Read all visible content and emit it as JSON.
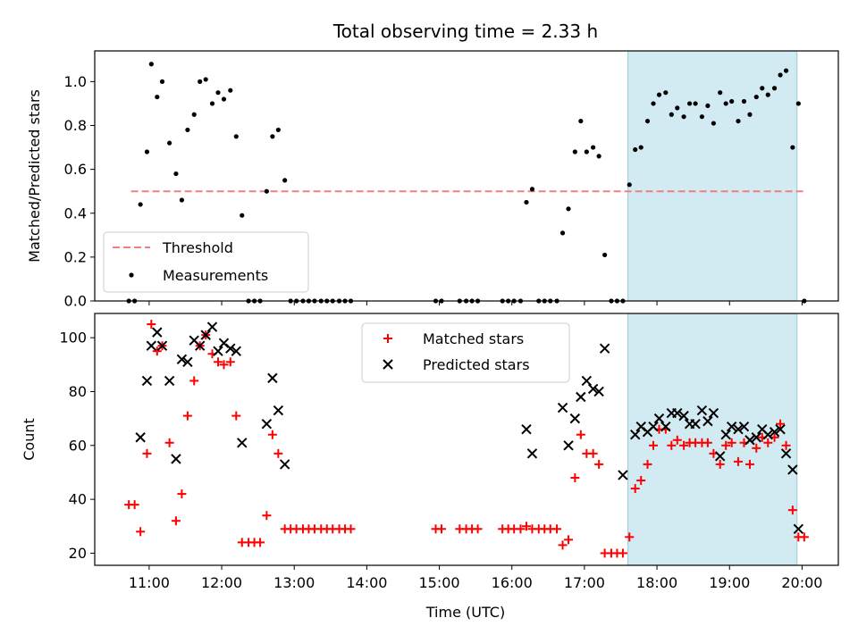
{
  "chart_data": [
    {
      "type": "scatter",
      "title": "Total observing time = 2.33 h",
      "xlabel": "",
      "ylabel": "Matched/Predicted stars",
      "ylim": [
        0,
        1.14
      ],
      "yticks": [
        "0.0",
        "0.2",
        "0.4",
        "0.6",
        "0.8",
        "1.0"
      ],
      "legend_position": "lower-left",
      "threshold": {
        "name": "Threshold",
        "value": 0.5,
        "x_start": 10.75,
        "x_end": 20.05,
        "color": "#f08080"
      },
      "shaded_interval": {
        "x_start": 17.6,
        "x_end": 19.93,
        "color": "#add8e6"
      },
      "series": [
        {
          "name": "Measurements",
          "color": "#000000",
          "marker": "dot",
          "points": [
            [
              10.72,
              0
            ],
            [
              10.8,
              0
            ],
            [
              10.88,
              0.44
            ],
            [
              10.97,
              0.68
            ],
            [
              11.03,
              1.08
            ],
            [
              11.11,
              0.93
            ],
            [
              11.18,
              1.0
            ],
            [
              11.28,
              0.72
            ],
            [
              11.37,
              0.58
            ],
            [
              11.45,
              0.46
            ],
            [
              11.53,
              0.78
            ],
            [
              11.62,
              0.85
            ],
            [
              11.7,
              1.0
            ],
            [
              11.78,
              1.01
            ],
            [
              11.87,
              0.9
            ],
            [
              11.95,
              0.95
            ],
            [
              12.03,
              0.92
            ],
            [
              12.12,
              0.96
            ],
            [
              12.2,
              0.75
            ],
            [
              12.28,
              0.39
            ],
            [
              12.37,
              0
            ],
            [
              12.45,
              0
            ],
            [
              12.53,
              0
            ],
            [
              12.62,
              0.5
            ],
            [
              12.7,
              0.75
            ],
            [
              12.78,
              0.78
            ],
            [
              12.87,
              0.55
            ],
            [
              12.95,
              0
            ],
            [
              13.03,
              0
            ],
            [
              13.12,
              0
            ],
            [
              13.2,
              0
            ],
            [
              13.28,
              0
            ],
            [
              13.37,
              0
            ],
            [
              13.45,
              0
            ],
            [
              13.53,
              0
            ],
            [
              13.62,
              0
            ],
            [
              13.7,
              0
            ],
            [
              13.78,
              0
            ],
            [
              14.95,
              0
            ],
            [
              15.03,
              0
            ],
            [
              15.28,
              0
            ],
            [
              15.37,
              0
            ],
            [
              15.45,
              0
            ],
            [
              15.53,
              0
            ],
            [
              15.87,
              0
            ],
            [
              15.95,
              0
            ],
            [
              16.03,
              0
            ],
            [
              16.12,
              0
            ],
            [
              16.2,
              0.45
            ],
            [
              16.28,
              0.51
            ],
            [
              16.37,
              0
            ],
            [
              16.45,
              0
            ],
            [
              16.53,
              0
            ],
            [
              16.62,
              0
            ],
            [
              16.7,
              0.31
            ],
            [
              16.78,
              0.42
            ],
            [
              16.87,
              0.68
            ],
            [
              16.95,
              0.82
            ],
            [
              17.03,
              0.68
            ],
            [
              17.12,
              0.7
            ],
            [
              17.2,
              0.66
            ],
            [
              17.28,
              0.21
            ],
            [
              17.37,
              0
            ],
            [
              17.45,
              0
            ],
            [
              17.53,
              0
            ],
            [
              17.62,
              0.53
            ],
            [
              17.7,
              0.69
            ],
            [
              17.78,
              0.7
            ],
            [
              17.87,
              0.82
            ],
            [
              17.95,
              0.9
            ],
            [
              18.03,
              0.94
            ],
            [
              18.12,
              0.95
            ],
            [
              18.2,
              0.85
            ],
            [
              18.28,
              0.88
            ],
            [
              18.37,
              0.84
            ],
            [
              18.45,
              0.9
            ],
            [
              18.53,
              0.9
            ],
            [
              18.62,
              0.84
            ],
            [
              18.7,
              0.89
            ],
            [
              18.78,
              0.81
            ],
            [
              18.87,
              0.95
            ],
            [
              18.95,
              0.9
            ],
            [
              19.03,
              0.91
            ],
            [
              19.12,
              0.82
            ],
            [
              19.2,
              0.91
            ],
            [
              19.28,
              0.85
            ],
            [
              19.37,
              0.93
            ],
            [
              19.45,
              0.97
            ],
            [
              19.53,
              0.94
            ],
            [
              19.62,
              0.97
            ],
            [
              19.7,
              1.03
            ],
            [
              19.78,
              1.05
            ],
            [
              19.87,
              0.7
            ],
            [
              19.95,
              0.9
            ],
            [
              20.03,
              0
            ]
          ]
        }
      ]
    },
    {
      "type": "scatter",
      "title": "",
      "xlabel": "Time (UTC)",
      "ylabel": "Count",
      "ylim": [
        15.5,
        109
      ],
      "yticks": [
        "20",
        "40",
        "60",
        "80",
        "100"
      ],
      "xlim": [
        10.25,
        20.5
      ],
      "xticks": [
        "11:00",
        "12:00",
        "13:00",
        "14:00",
        "15:00",
        "16:00",
        "17:00",
        "18:00",
        "19:00",
        "20:00"
      ],
      "xtick_values": [
        11,
        12,
        13,
        14,
        15,
        16,
        17,
        18,
        19,
        20
      ],
      "legend_position": "upper-center",
      "shaded_interval": {
        "x_start": 17.6,
        "x_end": 19.93,
        "color": "#add8e6"
      },
      "series": [
        {
          "name": "Matched stars",
          "color": "#ff0000",
          "marker": "plus",
          "points": [
            [
              10.72,
              38
            ],
            [
              10.8,
              38
            ],
            [
              10.88,
              28
            ],
            [
              10.97,
              57
            ],
            [
              11.03,
              105
            ],
            [
              11.11,
              95
            ],
            [
              11.18,
              97
            ],
            [
              11.28,
              61
            ],
            [
              11.37,
              32
            ],
            [
              11.45,
              42
            ],
            [
              11.53,
              71
            ],
            [
              11.62,
              84
            ],
            [
              11.7,
              97
            ],
            [
              11.78,
              101
            ],
            [
              11.87,
              94
            ],
            [
              11.95,
              91
            ],
            [
              12.03,
              90
            ],
            [
              12.12,
              91
            ],
            [
              12.2,
              71
            ],
            [
              12.28,
              24
            ],
            [
              12.37,
              24
            ],
            [
              12.45,
              24
            ],
            [
              12.53,
              24
            ],
            [
              12.62,
              34
            ],
            [
              12.7,
              64
            ],
            [
              12.78,
              57
            ],
            [
              12.87,
              29
            ],
            [
              12.95,
              29
            ],
            [
              13.03,
              29
            ],
            [
              13.12,
              29
            ],
            [
              13.2,
              29
            ],
            [
              13.28,
              29
            ],
            [
              13.37,
              29
            ],
            [
              13.45,
              29
            ],
            [
              13.53,
              29
            ],
            [
              13.62,
              29
            ],
            [
              13.7,
              29
            ],
            [
              13.78,
              29
            ],
            [
              14.95,
              29
            ],
            [
              15.03,
              29
            ],
            [
              15.28,
              29
            ],
            [
              15.37,
              29
            ],
            [
              15.45,
              29
            ],
            [
              15.53,
              29
            ],
            [
              15.87,
              29
            ],
            [
              15.95,
              29
            ],
            [
              16.03,
              29
            ],
            [
              16.12,
              29
            ],
            [
              16.2,
              30
            ],
            [
              16.28,
              29
            ],
            [
              16.37,
              29
            ],
            [
              16.45,
              29
            ],
            [
              16.53,
              29
            ],
            [
              16.62,
              29
            ],
            [
              16.7,
              23
            ],
            [
              16.78,
              25
            ],
            [
              16.87,
              48
            ],
            [
              16.95,
              64
            ],
            [
              17.03,
              57
            ],
            [
              17.12,
              57
            ],
            [
              17.2,
              53
            ],
            [
              17.28,
              20
            ],
            [
              17.37,
              20
            ],
            [
              17.45,
              20
            ],
            [
              17.53,
              20
            ],
            [
              17.62,
              26
            ],
            [
              17.7,
              44
            ],
            [
              17.78,
              47
            ],
            [
              17.87,
              53
            ],
            [
              17.95,
              60
            ],
            [
              18.03,
              66
            ],
            [
              18.12,
              66
            ],
            [
              18.2,
              60
            ],
            [
              18.28,
              62
            ],
            [
              18.37,
              60
            ],
            [
              18.45,
              61
            ],
            [
              18.53,
              61
            ],
            [
              18.62,
              61
            ],
            [
              18.7,
              61
            ],
            [
              18.78,
              57
            ],
            [
              18.87,
              53
            ],
            [
              18.95,
              60
            ],
            [
              19.03,
              61
            ],
            [
              19.12,
              54
            ],
            [
              19.2,
              61
            ],
            [
              19.28,
              53
            ],
            [
              19.37,
              59
            ],
            [
              19.45,
              63
            ],
            [
              19.53,
              61
            ],
            [
              19.62,
              63
            ],
            [
              19.7,
              68
            ],
            [
              19.78,
              60
            ],
            [
              19.87,
              36
            ],
            [
              19.95,
              26
            ],
            [
              20.03,
              26
            ]
          ]
        },
        {
          "name": "Predicted stars",
          "color": "#000000",
          "marker": "x",
          "points": [
            [
              10.88,
              63
            ],
            [
              10.97,
              84
            ],
            [
              11.03,
              97
            ],
            [
              11.11,
              102
            ],
            [
              11.18,
              97
            ],
            [
              11.28,
              84
            ],
            [
              11.37,
              55
            ],
            [
              11.45,
              92
            ],
            [
              11.53,
              91
            ],
            [
              11.62,
              99
            ],
            [
              11.7,
              97
            ],
            [
              11.78,
              101
            ],
            [
              11.87,
              104
            ],
            [
              11.95,
              95
            ],
            [
              12.03,
              98
            ],
            [
              12.12,
              96
            ],
            [
              12.2,
              95
            ],
            [
              12.28,
              61
            ],
            [
              12.62,
              68
            ],
            [
              12.7,
              85
            ],
            [
              12.78,
              73
            ],
            [
              12.87,
              53
            ],
            [
              16.2,
              66
            ],
            [
              16.28,
              57
            ],
            [
              16.7,
              74
            ],
            [
              16.78,
              60
            ],
            [
              16.87,
              70
            ],
            [
              16.95,
              78
            ],
            [
              17.03,
              84
            ],
            [
              17.12,
              81
            ],
            [
              17.2,
              80
            ],
            [
              17.28,
              96
            ],
            [
              17.53,
              49
            ],
            [
              17.7,
              64
            ],
            [
              17.78,
              67
            ],
            [
              17.87,
              65
            ],
            [
              17.95,
              67
            ],
            [
              18.03,
              70
            ],
            [
              18.12,
              67
            ],
            [
              18.2,
              72
            ],
            [
              18.28,
              72
            ],
            [
              18.37,
              71
            ],
            [
              18.45,
              68
            ],
            [
              18.53,
              68
            ],
            [
              18.62,
              73
            ],
            [
              18.7,
              69
            ],
            [
              18.78,
              72
            ],
            [
              18.87,
              56
            ],
            [
              18.95,
              64
            ],
            [
              19.03,
              67
            ],
            [
              19.12,
              66
            ],
            [
              19.2,
              67
            ],
            [
              19.28,
              62
            ],
            [
              19.37,
              63
            ],
            [
              19.45,
              66
            ],
            [
              19.53,
              64
            ],
            [
              19.62,
              65
            ],
            [
              19.7,
              66
            ],
            [
              19.78,
              57
            ],
            [
              19.87,
              51
            ],
            [
              19.95,
              29
            ]
          ]
        }
      ]
    }
  ]
}
